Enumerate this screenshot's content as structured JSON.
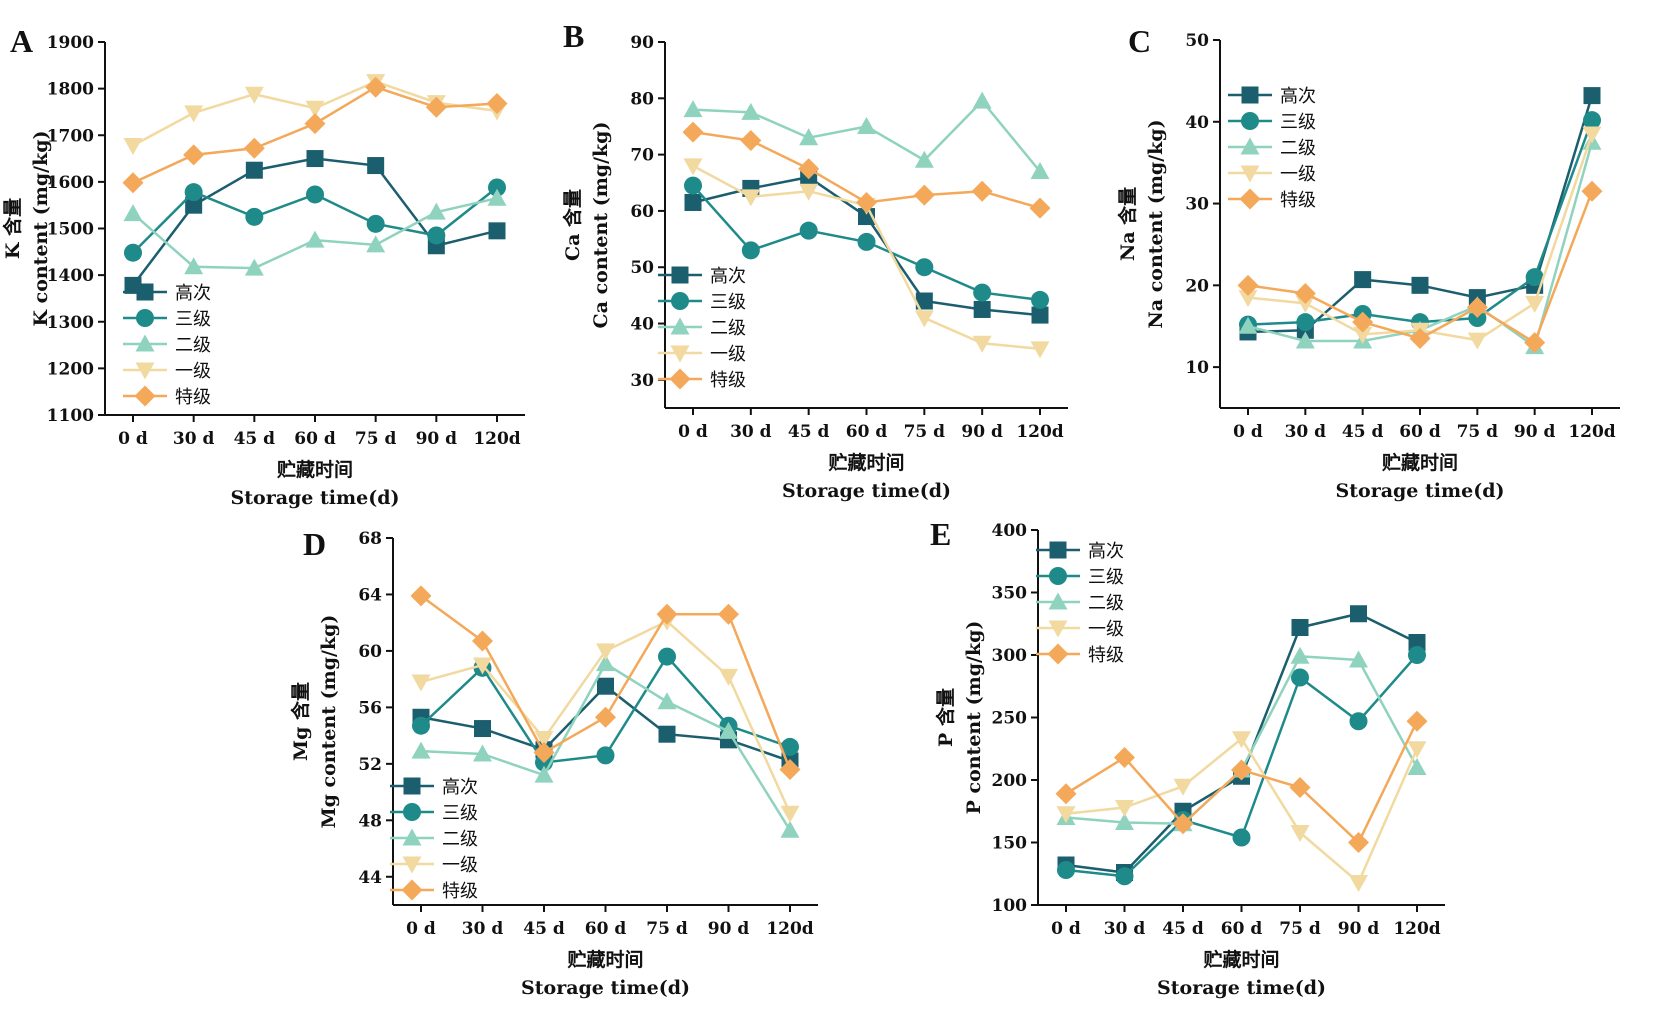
{
  "chart_data": [
    {
      "panel": "A",
      "type": "line",
      "categories": [
        "0 d",
        "30 d",
        "45 d",
        "60 d",
        "75 d",
        "90 d",
        "120d"
      ],
      "xlabel_cn": "贮藏时间",
      "xlabel": "Storage time(d)",
      "ylabel_cn": "K 含量",
      "ylabel": "K content (mg/kg)",
      "ylim": [
        1100,
        1900
      ],
      "yticks": [
        1100,
        1200,
        1300,
        1400,
        1500,
        1600,
        1700,
        1800,
        1900
      ],
      "legend_position": "bottom-left",
      "series": [
        {
          "name": "高次",
          "color": "#1b5e6e",
          "marker": "square",
          "values": [
            1378,
            1550,
            1625,
            1650,
            1635,
            1463,
            1495
          ]
        },
        {
          "name": "三级",
          "color": "#1f8a8a",
          "marker": "circle",
          "values": [
            1448,
            1578,
            1525,
            1573,
            1510,
            1485,
            1588
          ]
        },
        {
          "name": "二级",
          "color": "#8fd3bf",
          "marker": "triangle-up",
          "values": [
            1532,
            1418,
            1415,
            1475,
            1465,
            1535,
            1565
          ]
        },
        {
          "name": "一级",
          "color": "#f1d9a0",
          "marker": "triangle-down",
          "values": [
            1678,
            1748,
            1788,
            1758,
            1815,
            1770,
            1752
          ]
        },
        {
          "name": "特级",
          "color": "#f4a85a",
          "marker": "diamond",
          "values": [
            1598,
            1658,
            1672,
            1725,
            1803,
            1760,
            1768
          ]
        }
      ]
    },
    {
      "panel": "B",
      "type": "line",
      "categories": [
        "0 d",
        "30 d",
        "45 d",
        "60 d",
        "75 d",
        "90 d",
        "120d"
      ],
      "xlabel_cn": "贮藏时间",
      "xlabel": "Storage time(d)",
      "ylabel_cn": "Ca 含量",
      "ylabel": "Ca content (mg/kg)",
      "ylim": [
        25,
        90
      ],
      "yticks": [
        30,
        40,
        50,
        60,
        70,
        80,
        90
      ],
      "legend_position": "bottom-left",
      "series": [
        {
          "name": "高次",
          "color": "#1b5e6e",
          "marker": "square",
          "values": [
            61.5,
            64,
            66,
            59,
            44,
            42.5,
            41.5
          ]
        },
        {
          "name": "三级",
          "color": "#1f8a8a",
          "marker": "circle",
          "values": [
            64.5,
            53,
            56.5,
            54.5,
            50,
            45.5,
            44.2
          ]
        },
        {
          "name": "二级",
          "color": "#8fd3bf",
          "marker": "triangle-up",
          "values": [
            78,
            77.5,
            73,
            75,
            69,
            79.5,
            67
          ]
        },
        {
          "name": "一级",
          "color": "#f1d9a0",
          "marker": "triangle-down",
          "values": [
            68,
            62.5,
            63.5,
            61,
            41,
            36.5,
            35.5
          ]
        },
        {
          "name": "特级",
          "color": "#f4a85a",
          "marker": "diamond",
          "values": [
            74,
            72.5,
            67.5,
            61.5,
            62.8,
            63.5,
            60.5
          ]
        }
      ]
    },
    {
      "panel": "C",
      "type": "line",
      "categories": [
        "0 d",
        "30 d",
        "45 d",
        "60 d",
        "75 d",
        "90 d",
        "120d"
      ],
      "xlabel_cn": "贮藏时间",
      "xlabel": "Storage time(d)",
      "ylabel_cn": "Na 含量",
      "ylabel": "Na content (mg/kg)",
      "ylim": [
        5,
        50
      ],
      "yticks": [
        10,
        20,
        30,
        40,
        50
      ],
      "legend_position": "top-left",
      "series": [
        {
          "name": "高次",
          "color": "#1b5e6e",
          "marker": "square",
          "values": [
            14.3,
            14.5,
            20.7,
            20,
            18.5,
            20,
            43.2
          ]
        },
        {
          "name": "三级",
          "color": "#1f8a8a",
          "marker": "circle",
          "values": [
            15.2,
            15.5,
            16.5,
            15.5,
            16,
            21,
            40.2
          ]
        },
        {
          "name": "二级",
          "color": "#8fd3bf",
          "marker": "triangle-up",
          "values": [
            15,
            13.2,
            13.2,
            14.5,
            17.5,
            12.5,
            37.5
          ]
        },
        {
          "name": "一级",
          "color": "#f1d9a0",
          "marker": "triangle-down",
          "values": [
            18.5,
            17.8,
            14,
            14.5,
            13.3,
            17.8,
            38.5
          ]
        },
        {
          "name": "特级",
          "color": "#f4a85a",
          "marker": "diamond",
          "values": [
            20,
            19,
            15.5,
            13.5,
            17.3,
            13,
            31.5
          ]
        }
      ]
    },
    {
      "panel": "D",
      "type": "line",
      "categories": [
        "0 d",
        "30 d",
        "45 d",
        "60 d",
        "75 d",
        "90 d",
        "120d"
      ],
      "xlabel_cn": "贮藏时间",
      "xlabel": "Storage time(d)",
      "ylabel_cn": "Mg 含量",
      "ylabel": "Mg content (mg/kg)",
      "ylim": [
        42,
        68
      ],
      "yticks": [
        44,
        48,
        52,
        56,
        60,
        64,
        68
      ],
      "legend_position": "bottom-left",
      "series": [
        {
          "name": "高次",
          "color": "#1b5e6e",
          "marker": "square",
          "values": [
            55.3,
            54.5,
            53,
            57.5,
            54.1,
            53.7,
            52.2
          ]
        },
        {
          "name": "三级",
          "color": "#1f8a8a",
          "marker": "circle",
          "values": [
            54.7,
            58.8,
            52.1,
            52.6,
            59.6,
            54.7,
            53.2
          ]
        },
        {
          "name": "二级",
          "color": "#8fd3bf",
          "marker": "triangle-up",
          "values": [
            52.9,
            52.7,
            51.2,
            59.1,
            56.4,
            54.3,
            47.3
          ]
        },
        {
          "name": "一级",
          "color": "#f1d9a0",
          "marker": "triangle-down",
          "values": [
            57.8,
            59,
            53.8,
            60,
            62.1,
            58.2,
            48.5
          ]
        },
        {
          "name": "特级",
          "color": "#f4a85a",
          "marker": "diamond",
          "values": [
            63.9,
            60.7,
            52.8,
            55.3,
            62.6,
            62.6,
            51.6
          ]
        }
      ]
    },
    {
      "panel": "E",
      "type": "line",
      "categories": [
        "0 d",
        "30 d",
        "45 d",
        "60 d",
        "75 d",
        "90 d",
        "120d"
      ],
      "xlabel_cn": "贮藏时间",
      "xlabel": "Storage time(d)",
      "ylabel_cn": "P 含量",
      "ylabel": "P content (mg/kg)",
      "ylim": [
        100,
        400
      ],
      "yticks": [
        100,
        150,
        200,
        250,
        300,
        350,
        400
      ],
      "legend_position": "top-left",
      "series": [
        {
          "name": "高次",
          "color": "#1b5e6e",
          "marker": "square",
          "values": [
            132,
            126,
            175,
            203,
            322,
            333,
            310
          ]
        },
        {
          "name": "三级",
          "color": "#1f8a8a",
          "marker": "circle",
          "values": [
            128,
            123,
            168,
            154,
            282,
            247,
            300
          ]
        },
        {
          "name": "二级",
          "color": "#8fd3bf",
          "marker": "triangle-up",
          "values": [
            170,
            166,
            165,
            208,
            299,
            296,
            210
          ]
        },
        {
          "name": "一级",
          "color": "#f1d9a0",
          "marker": "triangle-down",
          "values": [
            173,
            178,
            195,
            233,
            158,
            118,
            225
          ]
        },
        {
          "name": "特级",
          "color": "#f4a85a",
          "marker": "diamond",
          "values": [
            189,
            218,
            165,
            208,
            194,
            150,
            247
          ]
        }
      ]
    }
  ]
}
